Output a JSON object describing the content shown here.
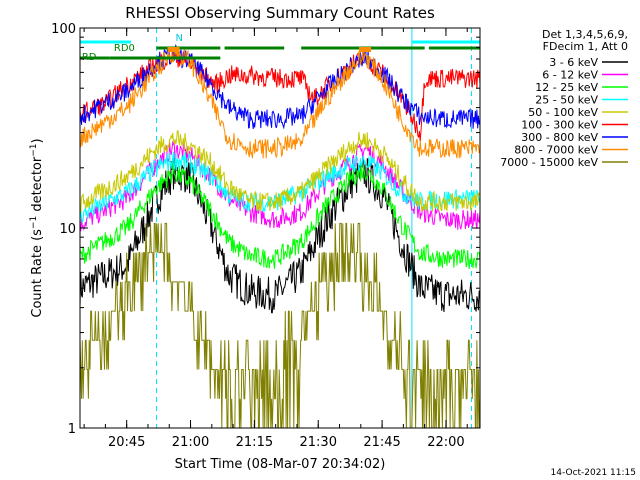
{
  "chart_data": {
    "type": "line",
    "title": "RHESSI Observing Summary Count Rates",
    "xlabel": "Start Time (08-Mar-07 20:34:02)",
    "ylabel": "Count Rate (s⁻¹ detector⁻¹)",
    "x_range": [
      "20:34:02",
      "22:08:00"
    ],
    "y_range": [
      1,
      100
    ],
    "y_scale": "log",
    "x_ticks": [
      "20:45",
      "21:00",
      "21:15",
      "21:30",
      "21:45",
      "22:00"
    ],
    "y_ticks": [
      "1",
      "10",
      "100"
    ],
    "timestamp": "14-Oct-2021 11:15",
    "legend_header": [
      "Det 1,3,4,5,6,9,",
      "FDecim 1, Att 0"
    ],
    "legend_position": "right",
    "series": [
      {
        "name": "3 - 6 keV",
        "color": "#000000",
        "points": [
          [
            "20:34",
            5.0
          ],
          [
            "20:45",
            6.5
          ],
          [
            "20:52",
            14
          ],
          [
            "20:56",
            19
          ],
          [
            "21:00",
            18
          ],
          [
            "21:05",
            10
          ],
          [
            "21:09",
            5.8
          ],
          [
            "21:14",
            4.8
          ],
          [
            "21:20",
            4.6
          ],
          [
            "21:26",
            6
          ],
          [
            "21:32",
            11
          ],
          [
            "21:38",
            17
          ],
          [
            "21:41",
            19
          ],
          [
            "21:45",
            15
          ],
          [
            "21:50",
            8
          ],
          [
            "21:54",
            5
          ],
          [
            "22:00",
            4.6
          ],
          [
            "22:08",
            4.6
          ]
        ]
      },
      {
        "name": "6 - 12 keV",
        "color": "#ff00ff",
        "points": [
          [
            "20:34",
            10.5
          ],
          [
            "20:45",
            14
          ],
          [
            "20:52",
            21
          ],
          [
            "20:56",
            25
          ],
          [
            "21:00",
            23
          ],
          [
            "21:05",
            18
          ],
          [
            "21:09",
            14
          ],
          [
            "21:14",
            12
          ],
          [
            "21:20",
            11
          ],
          [
            "21:26",
            12
          ],
          [
            "21:32",
            17
          ],
          [
            "21:38",
            22
          ],
          [
            "21:41",
            25
          ],
          [
            "21:45",
            21
          ],
          [
            "21:50",
            15
          ],
          [
            "21:54",
            12
          ],
          [
            "22:00",
            11
          ],
          [
            "22:08",
            11
          ]
        ]
      },
      {
        "name": "12 - 25 keV",
        "color": "#00ff00",
        "points": [
          [
            "20:34",
            7.2
          ],
          [
            "20:45",
            10
          ],
          [
            "20:52",
            16
          ],
          [
            "20:56",
            19
          ],
          [
            "21:00",
            17
          ],
          [
            "21:05",
            12
          ],
          [
            "21:09",
            8.5
          ],
          [
            "21:14",
            7.2
          ],
          [
            "21:20",
            7
          ],
          [
            "21:26",
            8.5
          ],
          [
            "21:32",
            13
          ],
          [
            "21:38",
            18
          ],
          [
            "21:41",
            19.5
          ],
          [
            "21:45",
            16
          ],
          [
            "21:50",
            10
          ],
          [
            "21:54",
            7.5
          ],
          [
            "22:00",
            7
          ],
          [
            "22:08",
            7
          ]
        ]
      },
      {
        "name": "25 - 50 keV",
        "color": "#00ffff",
        "points": [
          [
            "20:34",
            11.5
          ],
          [
            "20:45",
            15
          ],
          [
            "20:52",
            20
          ],
          [
            "20:56",
            22
          ],
          [
            "21:00",
            21
          ],
          [
            "21:05",
            18
          ],
          [
            "21:09",
            14.5
          ],
          [
            "21:14",
            13.5
          ],
          [
            "21:20",
            13.5
          ],
          [
            "21:26",
            15
          ],
          [
            "21:32",
            18
          ],
          [
            "21:38",
            21
          ],
          [
            "21:41",
            21.5
          ],
          [
            "21:45",
            19
          ],
          [
            "21:50",
            15
          ],
          [
            "21:54",
            13.5
          ],
          [
            "22:00",
            14
          ],
          [
            "22:08",
            14
          ]
        ]
      },
      {
        "name": "50 - 100 keV",
        "color": "#c8c800",
        "points": [
          [
            "20:34",
            13
          ],
          [
            "20:45",
            18
          ],
          [
            "20:52",
            25
          ],
          [
            "20:56",
            28
          ],
          [
            "21:00",
            26
          ],
          [
            "21:05",
            21
          ],
          [
            "21:09",
            16
          ],
          [
            "21:14",
            13.5
          ],
          [
            "21:20",
            13.5
          ],
          [
            "21:26",
            15
          ],
          [
            "21:32",
            20
          ],
          [
            "21:38",
            26
          ],
          [
            "21:41",
            28
          ],
          [
            "21:45",
            24
          ],
          [
            "21:50",
            17
          ],
          [
            "21:54",
            13.5
          ],
          [
            "22:00",
            13.5
          ],
          [
            "22:08",
            13.5
          ]
        ]
      },
      {
        "name": "100 - 300 keV",
        "color": "#ff0000",
        "points": [
          [
            "20:34",
            37
          ],
          [
            "20:40",
            42
          ],
          [
            "20:45",
            52
          ],
          [
            "20:52",
            66
          ],
          [
            "20:56",
            73
          ],
          [
            "21:00",
            66
          ],
          [
            "21:06",
            52
          ],
          [
            "21:09",
            58
          ],
          [
            "21:14",
            58
          ],
          [
            "21:20",
            56
          ],
          [
            "21:26",
            56
          ],
          [
            "21:29",
            44
          ],
          [
            "21:33",
            53
          ],
          [
            "21:38",
            66
          ],
          [
            "21:41",
            70
          ],
          [
            "21:45",
            60
          ],
          [
            "21:50",
            43
          ],
          [
            "21:54",
            30
          ],
          [
            "21:55",
            56
          ],
          [
            "22:00",
            56
          ],
          [
            "22:08",
            56
          ]
        ]
      },
      {
        "name": "300 - 800 keV",
        "color": "#0000ff",
        "points": [
          [
            "20:34",
            36
          ],
          [
            "20:45",
            48
          ],
          [
            "20:52",
            67
          ],
          [
            "20:56",
            74
          ],
          [
            "21:00",
            68
          ],
          [
            "21:05",
            52
          ],
          [
            "21:09",
            40
          ],
          [
            "21:14",
            35
          ],
          [
            "21:20",
            35
          ],
          [
            "21:26",
            36
          ],
          [
            "21:32",
            50
          ],
          [
            "21:38",
            65
          ],
          [
            "21:41",
            71
          ],
          [
            "21:45",
            60
          ],
          [
            "21:50",
            44
          ],
          [
            "21:54",
            36
          ],
          [
            "22:00",
            35
          ],
          [
            "22:08",
            35
          ]
        ]
      },
      {
        "name": "800 - 7000 keV",
        "color": "#ff8c00",
        "points": [
          [
            "20:34",
            28
          ],
          [
            "20:45",
            40
          ],
          [
            "20:52",
            62
          ],
          [
            "20:56",
            76
          ],
          [
            "21:00",
            68
          ],
          [
            "21:05",
            42
          ],
          [
            "21:09",
            28
          ],
          [
            "21:14",
            25
          ],
          [
            "21:20",
            25
          ],
          [
            "21:26",
            27
          ],
          [
            "21:32",
            44
          ],
          [
            "21:38",
            65
          ],
          [
            "21:41",
            73
          ],
          [
            "21:45",
            56
          ],
          [
            "21:50",
            34
          ],
          [
            "21:54",
            25
          ],
          [
            "22:00",
            25
          ],
          [
            "22:08",
            25
          ]
        ]
      },
      {
        "name": "7000 - 15000 keV",
        "color": "#808000",
        "points": [
          [
            "20:34",
            2.0
          ],
          [
            "20:40",
            3.0
          ],
          [
            "20:46",
            5.0
          ],
          [
            "20:50",
            7.0
          ],
          [
            "20:54",
            7.0
          ],
          [
            "20:58",
            5.0
          ],
          [
            "21:02",
            3.0
          ],
          [
            "21:06",
            2.0
          ],
          [
            "21:14",
            1.8
          ],
          [
            "21:20",
            2.0
          ],
          [
            "21:26",
            3.0
          ],
          [
            "21:31",
            5.0
          ],
          [
            "21:35",
            7.0
          ],
          [
            "21:39",
            7.0
          ],
          [
            "21:43",
            5.0
          ],
          [
            "21:47",
            3.0
          ],
          [
            "21:51",
            2.0
          ],
          [
            "22:08",
            1.8
          ]
        ]
      }
    ],
    "state_bars": [
      {
        "label": "N",
        "color": "#00ffff",
        "segments": [
          [
            "20:34",
            "20:46"
          ],
          [
            "21:52",
            "22:08"
          ]
        ]
      },
      {
        "label": "RD0",
        "color": "#008000",
        "segments": [
          [
            "20:52",
            "21:07"
          ],
          [
            "21:08",
            "21:22"
          ],
          [
            "21:26",
            "21:55"
          ],
          [
            "21:56",
            "22:08"
          ]
        ]
      },
      {
        "label": "RD",
        "color": "#008000",
        "segments": [
          [
            "20:34",
            "20:41"
          ],
          [
            "20:41",
            "21:07"
          ]
        ]
      }
    ],
    "markers": {
      "cyan_dashed": [
        "20:52",
        "22:06"
      ],
      "cyan_solid": [
        "20:34",
        "21:52"
      ],
      "orange_box": [
        "20:56",
        "21:41"
      ]
    }
  }
}
